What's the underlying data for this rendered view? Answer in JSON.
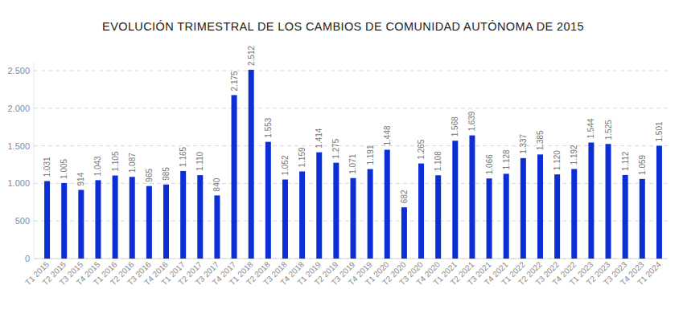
{
  "chart_data": {
    "type": "bar",
    "title": "EVOLUCIÓN TRIMESTRAL DE LOS CAMBIOS DE COMUNIDAD AUTÓNOMA DE 2015",
    "categories": [
      "T1 2015",
      "T2 2015",
      "T3 2015",
      "T4 2015",
      "T1 2016",
      "T2 2016",
      "T3 2016",
      "T4 2016",
      "T1 2017",
      "T2 2017",
      "T3 2017",
      "T4 2017",
      "T1 2018",
      "T2 2018",
      "T3 2018",
      "T4 2018",
      "T1 2019",
      "T2 2019",
      "T3 2019",
      "T4 2019",
      "T1 2020",
      "T2 2020",
      "T3 2020",
      "T4 2020",
      "T1 2021",
      "T2 2021",
      "T3 2021",
      "T4 2021",
      "T1 2022",
      "T2 2022",
      "T3 2022",
      "T4 2022",
      "T1 2023",
      "T2 2023",
      "T3 2023",
      "T4 2023",
      "T1 2024"
    ],
    "values": [
      1031,
      1005,
      914,
      1043,
      1105,
      1087,
      965,
      985,
      1165,
      1110,
      840,
      2175,
      2512,
      1553,
      1052,
      1159,
      1414,
      1275,
      1071,
      1191,
      1448,
      682,
      1265,
      1108,
      1568,
      1639,
      1066,
      1128,
      1337,
      1385,
      1120,
      1192,
      1544,
      1525,
      1112,
      1059,
      1501
    ],
    "value_labels": [
      "1.031",
      "1.005",
      "914",
      "1.043",
      "1.105",
      "1.087",
      "965",
      "985",
      "1.165",
      "1.110",
      "840",
      "2.175",
      "2.512",
      "1.553",
      "1.052",
      "1.159",
      "1.414",
      "1.275",
      "1.071",
      "1.191",
      "1.448",
      "682",
      "1.265",
      "1.108",
      "1.568",
      "1.639",
      "1.066",
      "1.128",
      "1.337",
      "1.385",
      "1.120",
      "1.192",
      "1.544",
      "1.525",
      "1.112",
      "1.059",
      "1.501"
    ],
    "color": "#0b2fd4",
    "ylim": [
      0,
      2600
    ],
    "yticks": [
      0,
      500,
      {
        "value": 1000,
        "label": "1.000"
      },
      {
        "value": 1500,
        "label": "1.500"
      },
      {
        "value": 2000,
        "label": "2.000"
      },
      {
        "value": 2500,
        "label": "2.500"
      }
    ],
    "grid": true,
    "data_labels": true
  }
}
